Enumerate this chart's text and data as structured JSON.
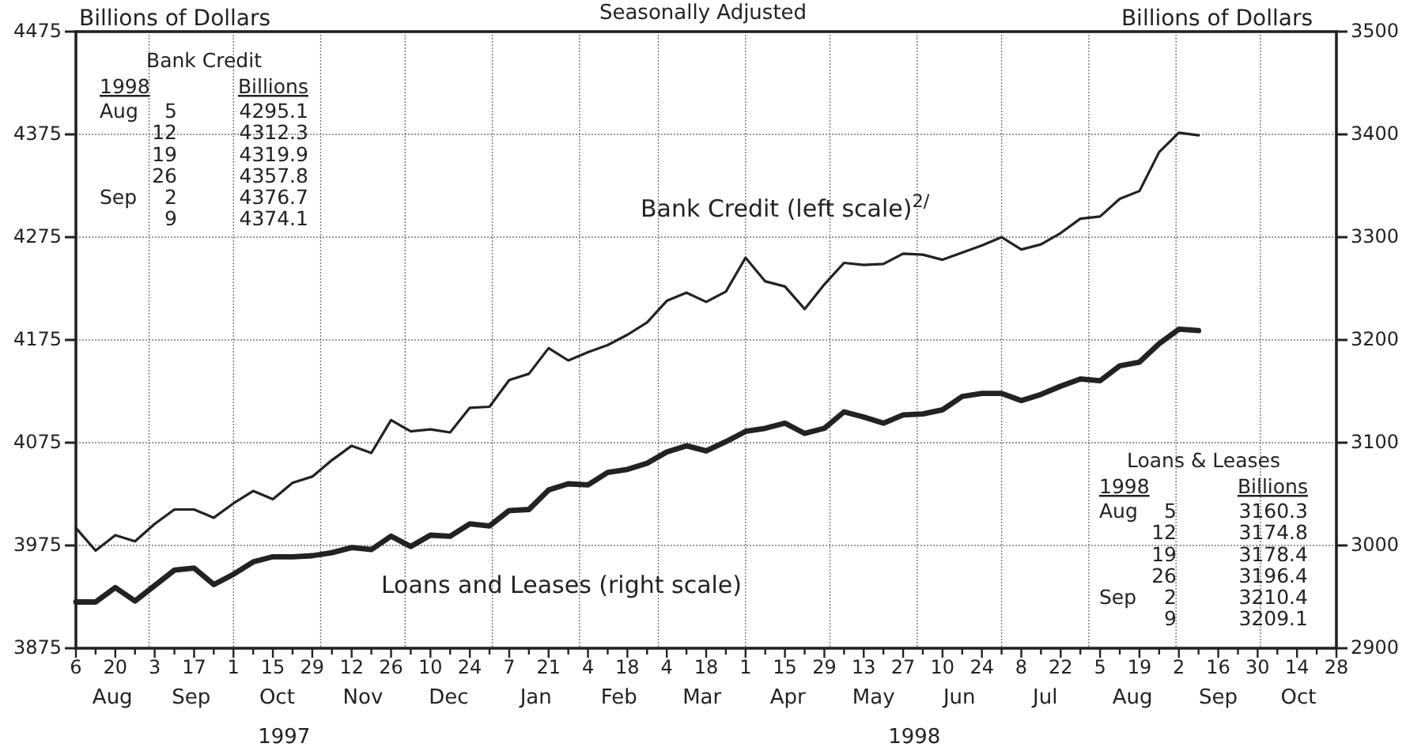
{
  "chart_data": {
    "type": "line",
    "title": "Seasonally Adjusted",
    "ylabel": "Billions of Dollars",
    "y2label": "Billions of Dollars",
    "x": [
      "1997-08-06",
      "1997-08-13",
      "1997-08-20",
      "1997-08-27",
      "1997-09-03",
      "1997-09-10",
      "1997-09-17",
      "1997-09-24",
      "1997-10-01",
      "1997-10-08",
      "1997-10-15",
      "1997-10-22",
      "1997-10-29",
      "1997-11-05",
      "1997-11-12",
      "1997-11-19",
      "1997-11-26",
      "1997-12-03",
      "1997-12-10",
      "1997-12-17",
      "1997-12-24",
      "1997-12-31",
      "1998-01-07",
      "1998-01-14",
      "1998-01-21",
      "1998-01-28",
      "1998-02-04",
      "1998-02-11",
      "1998-02-18",
      "1998-02-25",
      "1998-03-04",
      "1998-03-11",
      "1998-03-18",
      "1998-03-25",
      "1998-04-01",
      "1998-04-08",
      "1998-04-15",
      "1998-04-22",
      "1998-04-29",
      "1998-05-06",
      "1998-05-13",
      "1998-05-20",
      "1998-05-27",
      "1998-06-03",
      "1998-06-10",
      "1998-06-17",
      "1998-06-24",
      "1998-07-01",
      "1998-07-08",
      "1998-07-15",
      "1998-07-22",
      "1998-07-29",
      "1998-08-05",
      "1998-08-12",
      "1998-08-19",
      "1998-08-26",
      "1998-09-02",
      "1998-09-09"
    ],
    "series": [
      {
        "name": "Bank Credit (left scale)$^{2/}$",
        "color": "#222222",
        "values": [
          3992,
          3970,
          3985,
          3979,
          3996,
          4010,
          4010,
          4002,
          4016,
          4028,
          4020,
          4036,
          4042,
          4058,
          4072,
          4065,
          4097,
          4086,
          4088,
          4085,
          4109,
          4110,
          4136,
          4142,
          4167,
          4155,
          4163,
          4170,
          4180,
          4192,
          4213,
          4221,
          4212,
          4222,
          4255,
          4232,
          4227,
          4205,
          4229,
          4250,
          4248,
          4249,
          4259,
          4258,
          4253,
          4260,
          4267,
          4275,
          4263,
          4268,
          4279,
          4293,
          4295.1,
          4312.3,
          4319.9,
          4357.8,
          4376.7,
          4374.1
        ]
      },
      {
        "name": "Loans and Leases (right scale)",
        "color": "#222222",
        "axis": "y2",
        "values": [
          2945,
          2945,
          2959,
          2946,
          2961,
          2976,
          2978,
          2962,
          2972,
          2984,
          2989,
          2989,
          2990,
          2993,
          2998,
          2996,
          3009,
          2999,
          3010,
          3009,
          3021,
          3019,
          3034,
          3035,
          3054,
          3060,
          3059,
          3071,
          3074,
          3080,
          3091,
          3097,
          3092,
          3101,
          3111,
          3114,
          3119,
          3109,
          3114,
          3130,
          3125,
          3119,
          3127,
          3128,
          3132,
          3145,
          3148,
          3148,
          3141,
          3147,
          3155,
          3162,
          3160.3,
          3174.8,
          3178.4,
          3196.4,
          3210.4,
          3209.1
        ]
      }
    ],
    "xlim": [
      "1997-08-06",
      "1998-10-28"
    ],
    "xticks": [
      {
        "value": "1997-08-06",
        "label": "6"
      },
      {
        "value": "1997-08-13",
        "label": null
      },
      {
        "value": "1997-08-20",
        "label": "20"
      },
      {
        "value": "1997-08-27",
        "label": null
      },
      {
        "value": "1997-09-03",
        "label": "3"
      },
      {
        "value": "1997-09-10",
        "label": null
      },
      {
        "value": "1997-09-17",
        "label": "17"
      },
      {
        "value": "1997-09-24",
        "label": null
      },
      {
        "value": "1997-10-01",
        "label": "1"
      },
      {
        "value": "1997-10-08",
        "label": null
      },
      {
        "value": "1997-10-15",
        "label": "15"
      },
      {
        "value": "1997-10-22",
        "label": null
      },
      {
        "value": "1997-10-29",
        "label": "29"
      },
      {
        "value": "1997-11-05",
        "label": null
      },
      {
        "value": "1997-11-12",
        "label": "12"
      },
      {
        "value": "1997-11-19",
        "label": null
      },
      {
        "value": "1997-11-26",
        "label": "26"
      },
      {
        "value": "1997-12-03",
        "label": null
      },
      {
        "value": "1997-12-10",
        "label": "10"
      },
      {
        "value": "1997-12-17",
        "label": null
      },
      {
        "value": "1997-12-24",
        "label": "24"
      },
      {
        "value": "1997-12-31",
        "label": null
      },
      {
        "value": "1998-01-07",
        "label": "7"
      },
      {
        "value": "1998-01-14",
        "label": null
      },
      {
        "value": "1998-01-21",
        "label": "21"
      },
      {
        "value": "1998-01-28",
        "label": null
      },
      {
        "value": "1998-02-04",
        "label": "4"
      },
      {
        "value": "1998-02-11",
        "label": null
      },
      {
        "value": "1998-02-18",
        "label": "18"
      },
      {
        "value": "1998-02-25",
        "label": null
      },
      {
        "value": "1998-03-04",
        "label": "4"
      },
      {
        "value": "1998-03-11",
        "label": null
      },
      {
        "value": "1998-03-18",
        "label": "18"
      },
      {
        "value": "1998-03-25",
        "label": null
      },
      {
        "value": "1998-04-01",
        "label": "1"
      },
      {
        "value": "1998-04-08",
        "label": null
      },
      {
        "value": "1998-04-15",
        "label": "15"
      },
      {
        "value": "1998-04-22",
        "label": null
      },
      {
        "value": "1998-04-29",
        "label": "29"
      },
      {
        "value": "1998-05-06",
        "label": null
      },
      {
        "value": "1998-05-13",
        "label": "13"
      },
      {
        "value": "1998-05-20",
        "label": null
      },
      {
        "value": "1998-05-27",
        "label": "27"
      },
      {
        "value": "1998-06-03",
        "label": null
      },
      {
        "value": "1998-06-10",
        "label": "10"
      },
      {
        "value": "1998-06-17",
        "label": null
      },
      {
        "value": "1998-06-24",
        "label": "24"
      },
      {
        "value": "1998-07-01",
        "label": null
      },
      {
        "value": "1998-07-08",
        "label": "8"
      },
      {
        "value": "1998-07-15",
        "label": null
      },
      {
        "value": "1998-07-22",
        "label": "22"
      },
      {
        "value": "1998-07-29",
        "label": null
      },
      {
        "value": "1998-08-05",
        "label": "5"
      },
      {
        "value": "1998-08-12",
        "label": null
      },
      {
        "value": "1998-08-19",
        "label": "19"
      },
      {
        "value": "1998-08-26",
        "label": null
      },
      {
        "value": "1998-09-02",
        "label": "2"
      },
      {
        "value": "1998-09-09",
        "label": null
      },
      {
        "value": "1998-09-16",
        "label": "16"
      },
      {
        "value": "1998-09-23",
        "label": null
      },
      {
        "value": "1998-09-30",
        "label": "30"
      },
      {
        "value": "1998-10-07",
        "label": null
      },
      {
        "value": "1998-10-14",
        "label": "14"
      },
      {
        "value": "1998-10-21",
        "label": null
      },
      {
        "value": "1998-10-28",
        "label": "28"
      }
    ],
    "ylim": [
      3875,
      4475
    ],
    "yticks": [
      3875,
      3975,
      4075,
      4175,
      4275,
      4375,
      4475
    ],
    "y2lim": [
      2900,
      3500
    ],
    "y2ticks": [
      2900,
      3000,
      3100,
      3200,
      3300,
      3400,
      3500
    ],
    "grid": true,
    "line_style": "solid",
    "marker": "none",
    "annotations": [
      "Bank Credit",
      "1998 Billions",
      "Aug 5 4295.1",
      "12 4312.3",
      "19 4319.9",
      "26 4357.8",
      "Sep 2 4376.7",
      "9 4374.1",
      "Loans & Leases",
      "1998 Billions",
      "Aug 5 3160.3",
      "12 3174.8",
      "19 3178.4",
      "26 3196.4",
      "Sep 2 3210.4",
      "9 3209.1",
      "Aug",
      "Sep",
      "Oct",
      "Nov",
      "Dec",
      "Jan",
      "Feb",
      "Mar",
      "Apr",
      "May",
      "Jun",
      "Jul",
      "Aug",
      "Sep",
      "Oct",
      "1997",
      "1998"
    ]
  }
}
